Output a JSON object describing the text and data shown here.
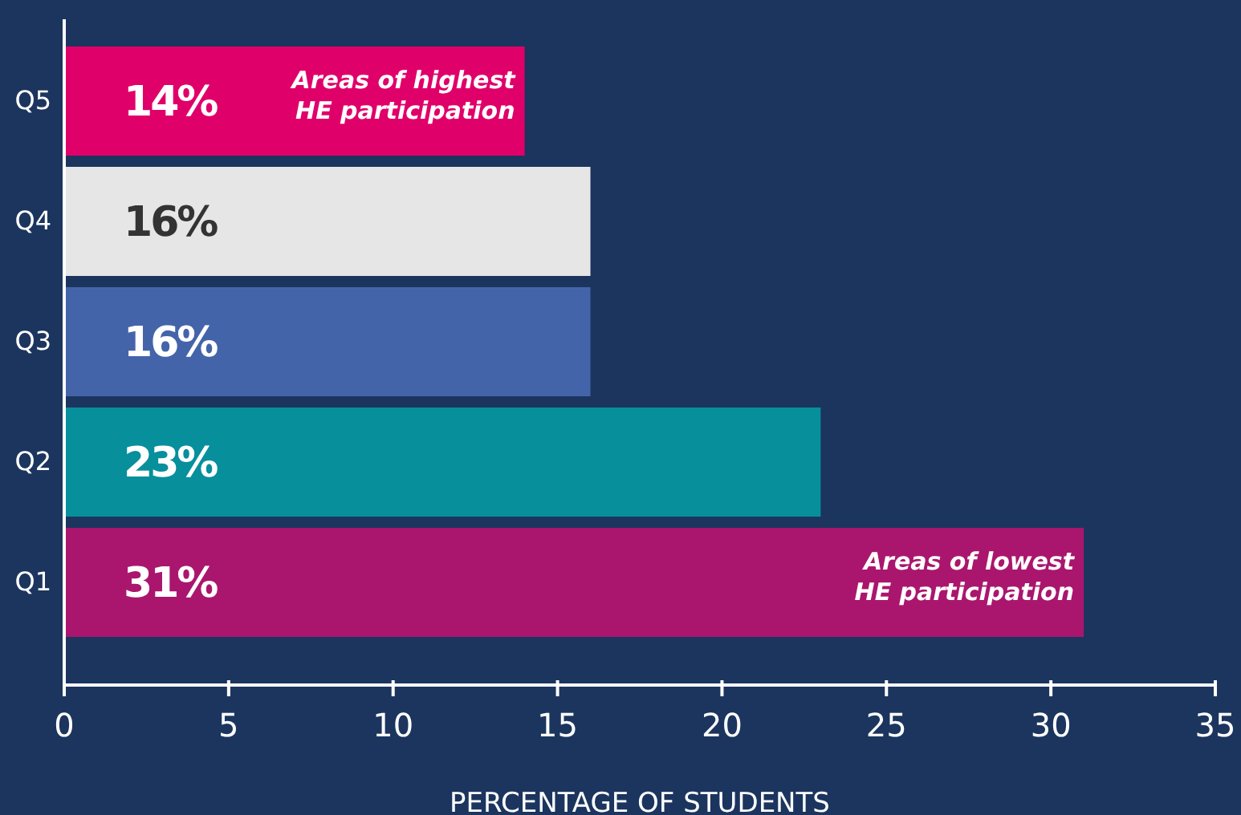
{
  "chart_data": {
    "type": "bar",
    "orientation": "horizontal",
    "xlabel": "PERCENTAGE OF STUDENTS",
    "categories": [
      "Q5",
      "Q4",
      "Q3",
      "Q2",
      "Q1"
    ],
    "values": [
      14,
      16,
      16,
      23,
      31
    ],
    "colors": [
      "#e0006a",
      "#e6e6e6",
      "#4464aa",
      "#078f9c",
      "#aa166e"
    ],
    "value_labels": [
      "14%",
      "16%",
      "16%",
      "23%",
      "31%"
    ],
    "xlim": [
      0,
      35
    ],
    "xticks": [
      0,
      5,
      10,
      15,
      20,
      25,
      30,
      35
    ],
    "annotations": [
      {
        "text": "Areas of highest HE participation",
        "x": 14,
        "y": "Q5"
      },
      {
        "text": "Areas of lowest HE participation",
        "x": 31,
        "y": "Q1"
      }
    ]
  }
}
